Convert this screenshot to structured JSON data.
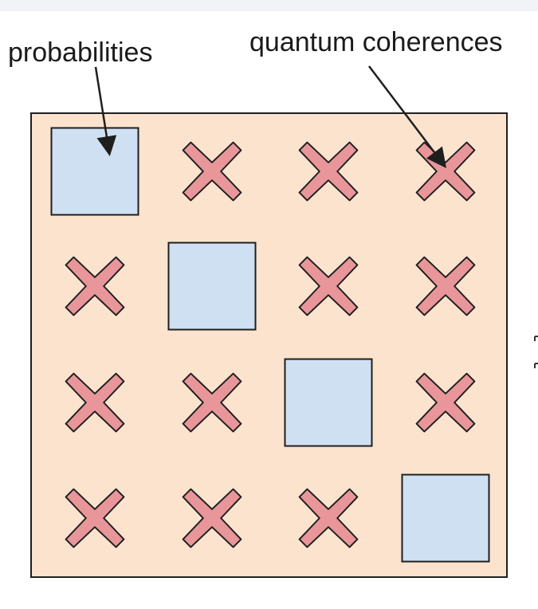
{
  "labels": {
    "probabilities": "probabilities",
    "coherences": "quantum coherences"
  },
  "matrix": {
    "size": 4,
    "cells": [
      [
        "square",
        "cross",
        "cross",
        "cross"
      ],
      [
        "cross",
        "square",
        "cross",
        "cross"
      ],
      [
        "cross",
        "cross",
        "square",
        "cross"
      ],
      [
        "cross",
        "cross",
        "cross",
        "square"
      ]
    ]
  },
  "arrows": [
    {
      "from_label": "probabilities",
      "points_to": "cell-0-0"
    },
    {
      "from_label": "quantum coherences",
      "points_to": "cell-0-3"
    }
  ],
  "colors": {
    "background": "#fbe3ce",
    "square_fill": "#cfe0f2",
    "cross_fill": "#e8969a",
    "outline": "#1f1f1f"
  },
  "icons": {
    "diagonal": "square-icon",
    "off_diagonal": "cross-icon"
  }
}
